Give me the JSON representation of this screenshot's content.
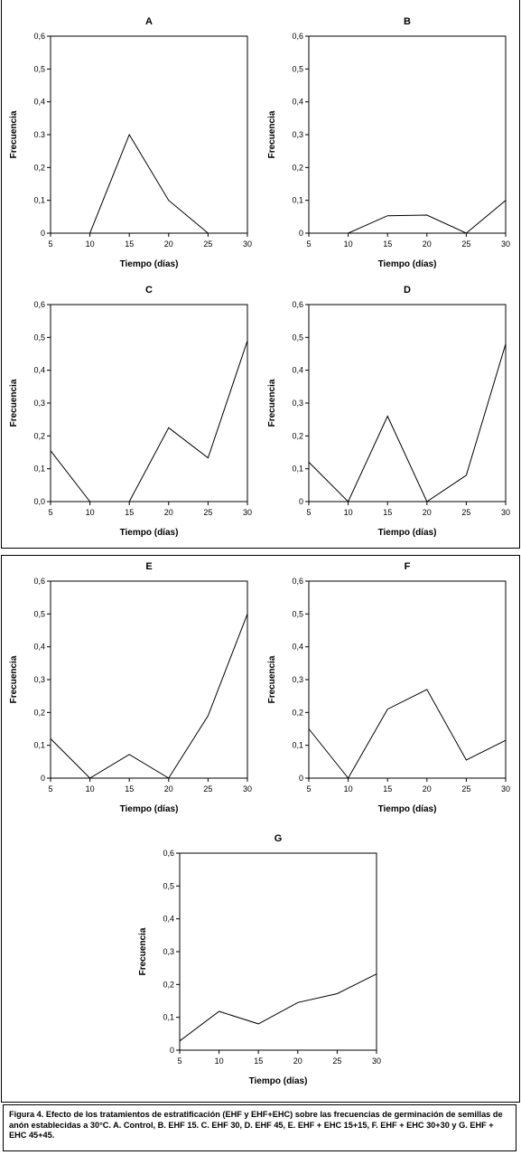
{
  "chart_data": [
    {
      "type": "line",
      "title": "A",
      "xlabel": "Tiempo (días)",
      "ylabel": "Frecuencia",
      "x": [
        5,
        10,
        15,
        20,
        25,
        30
      ],
      "values": [
        0,
        0,
        0.3,
        0.1,
        0,
        0
      ],
      "xlim": [
        5,
        30
      ],
      "ylim": [
        0,
        0.6
      ],
      "xticks": [
        "5",
        "10",
        "15",
        "20",
        "25",
        "30"
      ],
      "yticks": [
        "0",
        "0,1",
        "0,2",
        "0.3",
        "0,4",
        "0,5",
        "0,6"
      ]
    },
    {
      "type": "line",
      "title": "B",
      "xlabel": "Tiempo (días)",
      "ylabel": "Frecuencia",
      "x": [
        5,
        10,
        15,
        20,
        25,
        30
      ],
      "values": [
        0,
        0,
        0.053,
        0.055,
        0,
        0.1
      ],
      "xlim": [
        5,
        30
      ],
      "ylim": [
        0,
        0.6
      ],
      "xticks": [
        "5",
        "10",
        "15",
        "20",
        "25",
        "30"
      ],
      "yticks": [
        "0",
        "0,1",
        "0,2",
        "0,3",
        "0,4",
        "0,5",
        "0,6"
      ]
    },
    {
      "type": "line",
      "title": "C",
      "xlabel": "Tiempo (días)",
      "ylabel": "Frecuencia",
      "x": [
        5,
        10,
        15,
        20,
        25,
        30
      ],
      "values": [
        0.155,
        0,
        0,
        0.225,
        0.133,
        0.49
      ],
      "xlim": [
        5,
        30
      ],
      "ylim": [
        0,
        0.6
      ],
      "xticks": [
        "5",
        "10",
        "15",
        "20",
        "25",
        "30"
      ],
      "yticks": [
        "0,0",
        "0,1",
        "0,2",
        "0,3",
        "0,4",
        "0,5",
        "0,6"
      ]
    },
    {
      "type": "line",
      "title": "D",
      "xlabel": "Tiempo (días)",
      "ylabel": "Frecuencia",
      "x": [
        5,
        10,
        15,
        20,
        25,
        30
      ],
      "values": [
        0.12,
        0,
        0.26,
        0,
        0.08,
        0.48
      ],
      "xlim": [
        5,
        30
      ],
      "ylim": [
        0,
        0.6
      ],
      "xticks": [
        "5",
        "10",
        "15",
        "20",
        "25",
        "30"
      ],
      "yticks": [
        "0",
        "0,1",
        "0,2",
        "0,3",
        "0,4",
        "0,5",
        "0,6"
      ]
    },
    {
      "type": "line",
      "title": "E",
      "xlabel": "Tiempo (días)",
      "ylabel": "Frecuencia",
      "x": [
        5,
        10,
        15,
        20,
        25,
        30
      ],
      "values": [
        0.12,
        0,
        0.072,
        0,
        0.19,
        0.5
      ],
      "xlim": [
        5,
        30
      ],
      "ylim": [
        0,
        0.6
      ],
      "xticks": [
        "5",
        "10",
        "15",
        "20",
        "25",
        "30"
      ],
      "yticks": [
        "0",
        "0,1",
        "0,2",
        "0,3",
        "0,4",
        "0,5",
        "0,6"
      ]
    },
    {
      "type": "line",
      "title": "F",
      "xlabel": "Tiempo (días)",
      "ylabel": "Frecuencia",
      "x": [
        5,
        10,
        15,
        20,
        25,
        30
      ],
      "values": [
        0.15,
        0,
        0.21,
        0.27,
        0.055,
        0.115
      ],
      "xlim": [
        5,
        30
      ],
      "ylim": [
        0,
        0.6
      ],
      "xticks": [
        "5",
        "10",
        "15",
        "20",
        "25",
        "30"
      ],
      "yticks": [
        "0",
        "0,1",
        "0,2",
        "0,3",
        "0,4",
        "0,5",
        "0,6"
      ]
    },
    {
      "type": "line",
      "title": "G",
      "xlabel": "Tiempo (días)",
      "ylabel": "Frecuencia",
      "x": [
        5,
        10,
        15,
        20,
        25,
        30
      ],
      "values": [
        0.028,
        0.118,
        0.08,
        0.145,
        0.172,
        0.232
      ],
      "xlim": [
        5,
        30
      ],
      "ylim": [
        0,
        0.6
      ],
      "xticks": [
        "5",
        "10",
        "15",
        "20",
        "25",
        "30"
      ],
      "yticks": [
        "0",
        "0,1",
        "0,2",
        "0,3",
        "0,4",
        "0,5",
        "0,6"
      ]
    }
  ],
  "caption": {
    "text": "Figura 4.  Efecto de los tratamientos de estratificación (EHF y EHF+EHC) sobre las frecuencias de germinación de semillas de anón establecidas a 30°C.  A. Control, B. EHF 15. C. EHF 30, D. EHF 45, E. EHF + EHC 15+15, F. EHF + EHC 30+30 y G. EHF + EHC 45+45."
  }
}
